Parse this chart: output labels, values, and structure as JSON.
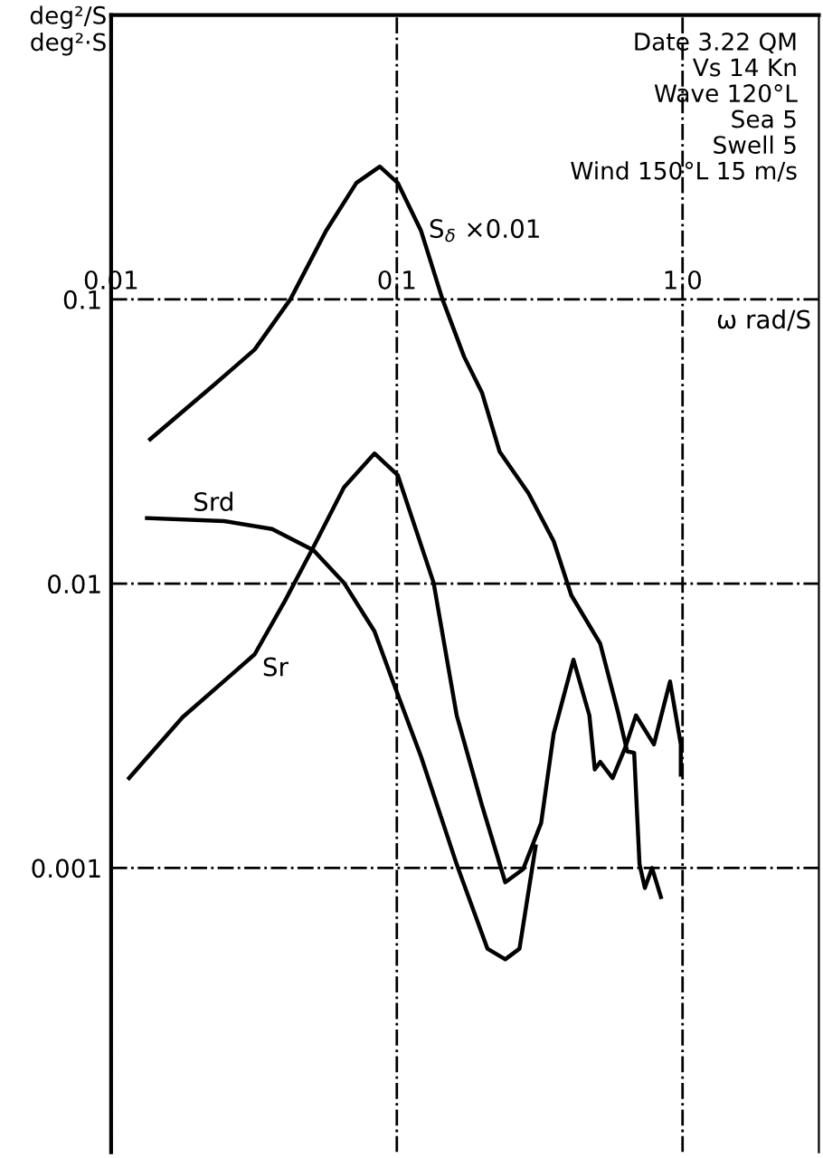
{
  "chart_data": {
    "type": "line",
    "ylabel": "deg²/S\ndeg²·S",
    "xlabel": "ω rad/S",
    "log": "xy",
    "xlim": [
      0.01,
      3
    ],
    "ylim": [
      0.0001,
      1
    ],
    "xticks": [
      0.01,
      0.1,
      {
        "value": 1,
        "label": "1.0"
      }
    ],
    "yticks": [
      0.1,
      0.01,
      0.001
    ],
    "grid": true,
    "annotations": [
      "Date 3.22 QM",
      "Vs 14 Kn",
      "Wave 120°L",
      "Sea 5",
      "Swell 5",
      "Wind 150°L 15 m/s"
    ],
    "series": [
      {
        "name": "S$_{δ}$ ×0.01",
        "color": "#000000",
        "x": [
          0.0137,
          0.0228,
          0.0318,
          0.0424,
          0.0565,
          0.0722,
          0.0872,
          0.1007,
          0.1216,
          0.1445,
          0.172,
          0.1986,
          0.229,
          0.289,
          0.354,
          0.408,
          0.515,
          0.594,
          0.64,
          0.677,
          0.707,
          0.738,
          0.782,
          0.84
        ],
        "values": [
          0.0322,
          0.0498,
          0.0666,
          0.1,
          0.174,
          0.257,
          0.293,
          0.257,
          0.174,
          0.1,
          0.0628,
          0.047,
          0.0291,
          0.0208,
          0.0141,
          0.0091,
          0.00615,
          0.00354,
          0.00257,
          0.00254,
          0.00103,
          0.00085,
          0.001,
          0.00079
        ]
      },
      {
        "name": "Srd",
        "color": "#000000",
        "x": [
          0.01335,
          0.0248,
          0.0366,
          0.0511,
          0.0653,
          0.0835,
          0.0964,
          0.1216,
          0.162,
          0.2075,
          0.2396,
          0.2687,
          0.306
        ],
        "values": [
          0.017,
          0.0166,
          0.01557,
          0.0131,
          0.01007,
          0.0068,
          0.00459,
          0.00246,
          0.00103,
          0.00052,
          0.000477,
          0.00052,
          0.00119
        ]
      },
      {
        "name": "Sr",
        "color": "#000000",
        "x": [
          0.01156,
          0.0178,
          0.0318,
          0.0406,
          0.0511,
          0.0653,
          0.0835,
          0.1007,
          0.1345,
          0.162,
          0.1986,
          0.2396,
          0.2767,
          0.32,
          0.354,
          0.415,
          0.472,
          0.493,
          0.515,
          0.569,
          0.63,
          0.687,
          0.794,
          0.904,
          0.986,
          0.986
        ],
        "values": [
          0.00207,
          0.00339,
          0.00564,
          0.0087,
          0.01346,
          0.0218,
          0.0287,
          0.0241,
          0.01007,
          0.00344,
          0.00166,
          0.00089,
          0.00099,
          0.00144,
          0.00297,
          0.0054,
          0.00344,
          0.00222,
          0.00236,
          0.00207,
          0.00265,
          0.00344,
          0.00272,
          0.00453,
          0.00272,
          0.00213
        ]
      }
    ]
  }
}
